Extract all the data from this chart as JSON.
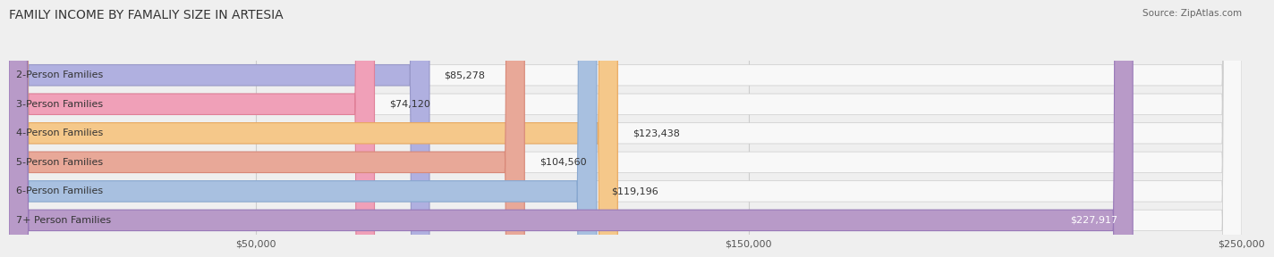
{
  "title": "FAMILY INCOME BY FAMALIY SIZE IN ARTESIA",
  "source": "Source: ZipAtlas.com",
  "categories": [
    "2-Person Families",
    "3-Person Families",
    "4-Person Families",
    "5-Person Families",
    "6-Person Families",
    "7+ Person Families"
  ],
  "values": [
    85278,
    74120,
    123438,
    104560,
    119196,
    227917
  ],
  "bar_colors": [
    "#b0b0e0",
    "#f0a0b8",
    "#f5c88a",
    "#e8a898",
    "#a8c0e0",
    "#b89ac8"
  ],
  "bar_edge_colors": [
    "#9898c8",
    "#e08098",
    "#e8a860",
    "#d88878",
    "#88a8d0",
    "#9878b8"
  ],
  "value_labels": [
    "$85,278",
    "$74,120",
    "$123,438",
    "$104,560",
    "$119,196",
    "$227,917"
  ],
  "xlim": [
    0,
    250000
  ],
  "xticks": [
    0,
    50000,
    150000,
    250000
  ],
  "xtick_labels": [
    "",
    "$50,000",
    "$150,000",
    "$250,000"
  ],
  "background_color": "#efefef",
  "bar_bg_color": "#f8f8f8",
  "title_fontsize": 10,
  "label_fontsize": 8,
  "value_fontsize": 8,
  "source_fontsize": 7.5
}
